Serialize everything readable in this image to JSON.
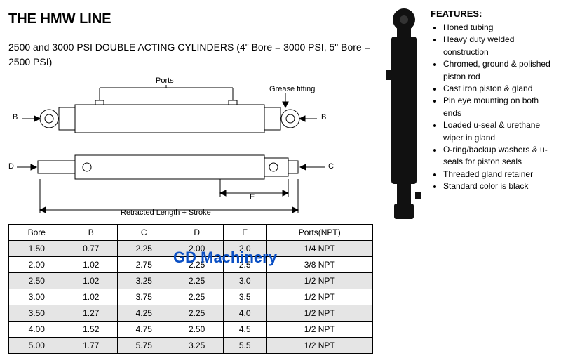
{
  "title": "THE HMW LINE",
  "subtitle": "2500 and 3000 PSI DOUBLE ACTING CYLINDERS (4\" Bore = 3000 PSI, 5\" Bore = 2500 PSI)",
  "watermark": "GD Machinery",
  "features_heading": "FEATURES:",
  "features": [
    "Honed tubing",
    "Heavy duty welded construction",
    "Chromed, ground & polished piston rod",
    "Cast iron piston & gland",
    "Pin eye mounting on both ends",
    "Loaded u-seal & urethane wiper in gland",
    "O-ring/backup washers & u-seals for piston seals",
    "Threaded gland retainer",
    "Standard color is black"
  ],
  "diagram_labels": {
    "ports": "Ports",
    "grease_fitting": "Grease fitting",
    "b": "B",
    "c": "C",
    "d": "D",
    "e": "E",
    "retracted": "Retracted Length + Stroke"
  },
  "table": {
    "columns": [
      "Bore",
      "B",
      "C",
      "D",
      "E",
      "Ports(NPT)"
    ],
    "rows": [
      [
        "1.50",
        "0.77",
        "2.25",
        "2.00",
        "2.0",
        "1/4 NPT"
      ],
      [
        "2.00",
        "1.02",
        "2.75",
        "2.25",
        "2.5",
        "3/8 NPT"
      ],
      [
        "2.50",
        "1.02",
        "3.25",
        "2.25",
        "3.0",
        "1/2 NPT"
      ],
      [
        "3.00",
        "1.02",
        "3.75",
        "2.25",
        "3.5",
        "1/2 NPT"
      ],
      [
        "3.50",
        "1.27",
        "4.25",
        "2.25",
        "4.0",
        "1/2 NPT"
      ],
      [
        "4.00",
        "1.52",
        "4.75",
        "2.50",
        "4.5",
        "1/2 NPT"
      ],
      [
        "5.00",
        "1.77",
        "5.75",
        "3.25",
        "5.5",
        "1/2 NPT"
      ]
    ],
    "alt_row_bg": "#e5e5e5",
    "border_color": "#000000"
  },
  "colors": {
    "watermark": "#0a4fc4",
    "text": "#000000",
    "background": "#ffffff",
    "cylinder_fill": "#111111"
  }
}
